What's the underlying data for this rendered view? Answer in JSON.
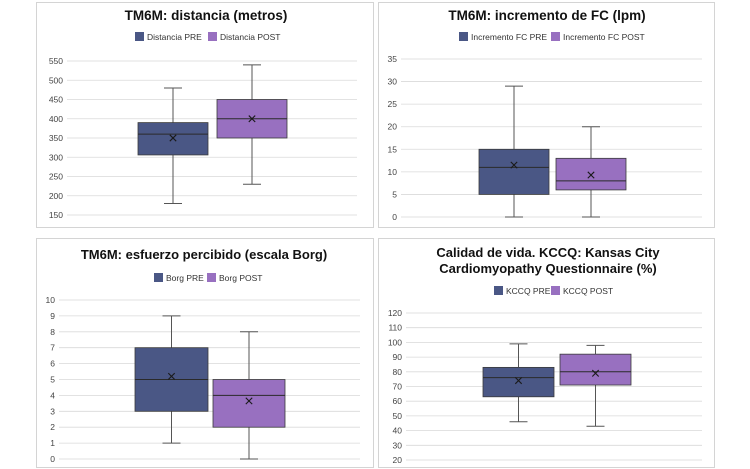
{
  "colors": {
    "pre": "#4a5785",
    "post": "#9870c0",
    "grid": "#d9d9d9",
    "whisker": "#555555"
  },
  "chart_data": [
    {
      "id": "distancia",
      "type": "box",
      "title_lines": [
        "TM6M: distancia (metros)"
      ],
      "legend": [
        "Distancia PRE",
        "Distancia POST"
      ],
      "ylim": [
        150,
        550
      ],
      "ystep": 50,
      "ticks": [
        "550",
        "500",
        "450",
        "400",
        "350",
        "300",
        "250",
        "200",
        "150"
      ],
      "series": [
        {
          "name": "Distancia PRE",
          "min": 180,
          "q1": 306,
          "median": 360,
          "q3": 390,
          "max": 480,
          "mean": 350
        },
        {
          "name": "Distancia POST",
          "min": 230,
          "q1": 350,
          "median": 400,
          "q3": 450,
          "max": 540,
          "mean": 400
        }
      ]
    },
    {
      "id": "fc",
      "type": "box",
      "title_lines": [
        "TM6M: incremento de FC (lpm)"
      ],
      "legend": [
        "Incremento FC PRE",
        "Incremento FC POST"
      ],
      "ylim": [
        0,
        35
      ],
      "ystep": 5,
      "ticks": [
        "35",
        "30",
        "25",
        "20",
        "15",
        "10",
        "5",
        "0"
      ],
      "series": [
        {
          "name": "Incremento FC PRE",
          "min": 0,
          "q1": 5,
          "median": 11,
          "q3": 15,
          "max": 29,
          "mean": 11.5
        },
        {
          "name": "Incremento FC POST",
          "min": 0,
          "q1": 6,
          "median": 8,
          "q3": 13,
          "max": 20,
          "mean": 9.3
        }
      ]
    },
    {
      "id": "borg",
      "type": "box",
      "title_lines": [
        "TM6M: esfuerzo percibido (escala Borg)"
      ],
      "legend": [
        "Borg PRE",
        "Borg POST"
      ],
      "ylim": [
        0,
        10
      ],
      "ystep": 1,
      "ticks": [
        "10",
        "9",
        "8",
        "7",
        "6",
        "5",
        "4",
        "3",
        "2",
        "1",
        "0"
      ],
      "series": [
        {
          "name": "Borg PRE",
          "min": 1,
          "q1": 3,
          "median": 5,
          "q3": 7,
          "max": 9,
          "mean": 5.2
        },
        {
          "name": "Borg POST",
          "min": 0,
          "q1": 2,
          "median": 4,
          "q3": 5,
          "max": 8,
          "mean": 3.65
        }
      ]
    },
    {
      "id": "kccq",
      "type": "box",
      "title_lines": [
        "Calidad de vida. KCCQ: Kansas City",
        "Cardiomyopathy Questionnaire (%)"
      ],
      "legend": [
        "KCCQ PRE",
        "KCCQ POST"
      ],
      "ylim": [
        20,
        120
      ],
      "ystep": 10,
      "ticks": [
        "120",
        "110",
        "100",
        "90",
        "80",
        "70",
        "60",
        "50",
        "40",
        "30",
        "20"
      ],
      "series": [
        {
          "name": "KCCQ PRE",
          "min": 46,
          "q1": 63,
          "median": 76,
          "q3": 83,
          "max": 99,
          "mean": 74
        },
        {
          "name": "KCCQ POST",
          "min": 43,
          "q1": 71,
          "median": 80,
          "q3": 92,
          "max": 98,
          "mean": 79
        }
      ]
    }
  ]
}
